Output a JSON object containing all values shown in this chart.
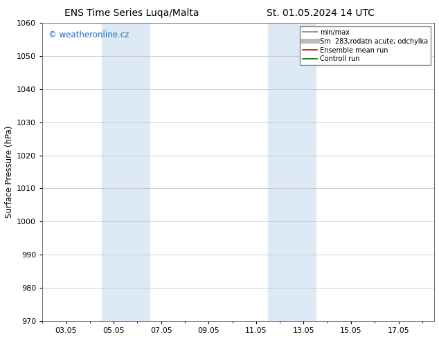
{
  "title_left": "ENS Time Series Luqa/Malta",
  "title_right": "St. 01.05.2024 14 UTC",
  "ylabel": "Surface Pressure (hPa)",
  "ylim": [
    970,
    1060
  ],
  "yticks": [
    970,
    980,
    990,
    1000,
    1010,
    1020,
    1030,
    1040,
    1050,
    1060
  ],
  "xtick_labels": [
    "03.05",
    "05.05",
    "07.05",
    "09.05",
    "11.05",
    "13.05",
    "15.05",
    "17.05"
  ],
  "xtick_positions": [
    2,
    4,
    6,
    8,
    10,
    12,
    14,
    16
  ],
  "xmin": 1.0,
  "xmax": 17.5,
  "shaded_bands": [
    {
      "x_start": 3.5,
      "x_end": 5.5
    },
    {
      "x_start": 10.5,
      "x_end": 12.5
    }
  ],
  "shaded_color": "#ddeaf5",
  "watermark_text": "© weatheronline.cz",
  "watermark_color": "#1a6bb5",
  "legend_entries": [
    {
      "label": "min/max",
      "color": "#999999",
      "lw": 1.5
    },
    {
      "label": "Sm  283;rodatn acute; odchylka",
      "color": "#bbbbbb",
      "lw": 5
    },
    {
      "label": "Ensemble mean run",
      "color": "#cc0000",
      "lw": 1.2
    },
    {
      "label": "Controll run",
      "color": "#006600",
      "lw": 1.2
    }
  ],
  "bg_color": "#ffffff",
  "grid_color": "#bbbbbb",
  "title_fontsize": 10,
  "tick_fontsize": 8,
  "ylabel_fontsize": 8.5,
  "watermark_fontsize": 8.5
}
